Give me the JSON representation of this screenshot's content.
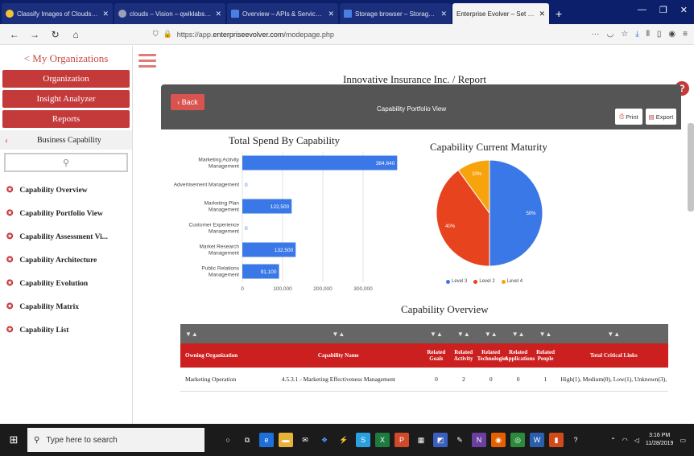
{
  "browser": {
    "tabs": [
      {
        "title": "Classify Images of Clouds in the",
        "active": false
      },
      {
        "title": "clouds – Vision – qwiklabs-gc",
        "active": false
      },
      {
        "title": "Overview – APIs & Services – q",
        "active": false
      },
      {
        "title": "Storage browser – Storage – q",
        "active": false
      },
      {
        "title": "Enterprise Evolver – Set Up Organi",
        "active": true
      }
    ],
    "new_tab": "+",
    "url_prefix": "https://app.",
    "url_host": "enterpriseevolver.com",
    "url_path": "/modepage.php"
  },
  "sidebar": {
    "back_link": "< My Organizations",
    "buttons": [
      "Organization",
      "Insight Analyzer",
      "Reports"
    ],
    "section": "Business Capability",
    "items": [
      "Capability Overview",
      "Capability Portfolio View",
      "Capability Assessment Vi...",
      "Capability Architecture",
      "Capability Evolution",
      "Capability Matrix",
      "Capability List"
    ]
  },
  "header": {
    "page_title": "Innovative Insurance Inc. / Report",
    "help": "?",
    "back": "Back",
    "panel_title": "Capability Portfolio View",
    "print": "Print",
    "export": "Export"
  },
  "chart_data": [
    {
      "type": "bar",
      "orientation": "horizontal",
      "title": "Total Spend By Capability",
      "categories": [
        "Marketing Activity Management",
        "Advertisement Management",
        "Marketing Plan Management",
        "Customer Experience Management",
        "Market Research Management",
        "Public Relations Management"
      ],
      "values": [
        384640,
        0,
        122500,
        0,
        132500,
        91100
      ],
      "value_labels": [
        "384,640",
        "0",
        "122,500",
        "0",
        "132,500",
        "91,100"
      ],
      "xticks": [
        "0",
        "100,000",
        "200,000",
        "300,000"
      ],
      "xlim": [
        0,
        400000
      ],
      "color": "#3b78e7"
    },
    {
      "type": "pie",
      "title": "Capability Current Maturity",
      "labels": [
        "Level 3",
        "Level 2",
        "Level 4"
      ],
      "values": [
        50,
        40,
        10
      ],
      "value_labels": [
        "50%",
        "40%",
        "10%"
      ],
      "colors": [
        "#3b78e7",
        "#e8431f",
        "#f7a30c"
      ]
    }
  ],
  "overview": {
    "title": "Capability Overview",
    "columns": [
      "Owning Organization",
      "Capability Name",
      "Related Goals",
      "Related Activity",
      "Related Technologies",
      "Related Applications",
      "Related People",
      "Total Critical Links"
    ],
    "rows": [
      {
        "org": "Marketing Operation",
        "name": "4.5.3.1 - Marketing Effectiveness Management",
        "goals": "0",
        "activity": "2",
        "technologies": "0",
        "applications": "0",
        "people": "1",
        "links": "High(1), Medium(0), Low(1), Unknown(3),"
      }
    ]
  },
  "taskbar": {
    "search_placeholder": "Type here to search",
    "time": "3:16 PM",
    "date": "11/28/2019"
  }
}
